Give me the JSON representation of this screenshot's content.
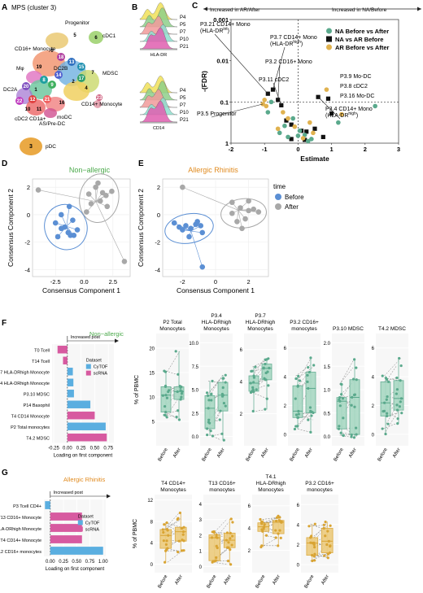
{
  "panels": {
    "A": {
      "letter": "A",
      "title": "MPS (cluster 3)",
      "cluster_labels": [
        {
          "num": "5",
          "name": "Progenitor"
        },
        {
          "num": "6",
          "name": "cDC1"
        },
        {
          "num": "0",
          "name": "CD16+ Monocyte"
        },
        {
          "num": "19",
          "name": "Mφ"
        },
        {
          "num": "2",
          "name": "DC2B"
        },
        {
          "num": "7",
          "name": "MDSC"
        },
        {
          "num": "4",
          "name": "CD14+ Monocyte"
        },
        {
          "num": "1",
          "name": "DC2A"
        },
        {
          "num": "16",
          "name": "moDC"
        },
        {
          "num": "10",
          "name": "cDC2 CD1a+"
        },
        {
          "num": "11",
          "name": "AS/Pre-DC"
        },
        {
          "num": "3",
          "name": "pDC"
        }
      ],
      "other_nums": [
        "18",
        "13",
        "15",
        "14",
        "17",
        "8",
        "9",
        "20",
        "22",
        "12",
        "21",
        "23"
      ]
    },
    "B": {
      "letter": "B",
      "samples": [
        "P4",
        "P5",
        "P7",
        "P10",
        "P21"
      ],
      "markers": [
        "HLA-DR",
        "CD14"
      ],
      "colors": [
        "#f0e15a",
        "#8fd08a",
        "#f29b9b",
        "#8fe0d0",
        "#e05fb0"
      ]
    },
    "C": {
      "letter": "C",
      "arrow_left": "Increased in AR/After",
      "arrow_right": "Increased in NA/Before",
      "xlabel": "Estimate",
      "ylabel": "-(FDR)",
      "ytick_labels": [
        "0.001",
        "0.01",
        "0.1",
        "1"
      ],
      "xtick_labels": [
        "-2",
        "-1",
        "0",
        "1",
        "2",
        "3"
      ],
      "legend": [
        {
          "label": "NA Before vs After",
          "color": "#5aa98c",
          "shape": "circle"
        },
        {
          "label": "NA vs AR Before",
          "color": "#111111",
          "shape": "square"
        },
        {
          "label": "AR Before vs After",
          "color": "#e0b24f",
          "shape": "circle"
        }
      ],
      "annotations": [
        {
          "line1": "P3.21 CD14+ Mono",
          "line2": "(HLA-DR",
          "sup": "int",
          "tail": ")"
        },
        {
          "line1": "P3.7 CD14+ Mono",
          "line2": "(HLA-DR",
          "sup": "high",
          "tail": ")"
        },
        {
          "line1": "P3.2 CD16+ Mono"
        },
        {
          "line1": "P3.11 cDC2"
        },
        {
          "line1": "P3.9 Mo-DC"
        },
        {
          "line1": "P3.8 cDC2"
        },
        {
          "line1": "P3.16 Mo-DC"
        },
        {
          "line1": "P3.5 Progenitor"
        },
        {
          "line1": "P3.4 CD14+ Mono",
          "line2": "(HLA-DR",
          "sup": "high",
          "tail": ")"
        }
      ]
    },
    "D": {
      "letter": "D",
      "title": "Non−allergic",
      "title_color": "#4aa94a",
      "xlabel": "Consensus Component 1",
      "ylabel": "Consensus Component 2",
      "xtick_labels": [
        "-2.5",
        "0.0",
        "2.5"
      ],
      "ytick_labels": [
        "2",
        "0",
        "-2",
        "-4"
      ]
    },
    "E": {
      "letter": "E",
      "title": "Allergic Rhinitis",
      "title_color": "#e08a1e",
      "xlabel": "Consensus Component 1",
      "ylabel": "Consensus Component 2",
      "xtick_labels": [
        "-2",
        "0",
        "2"
      ],
      "ytick_labels": [
        "2",
        "0",
        "-2",
        "-4"
      ],
      "legend_title": "time",
      "legend": [
        {
          "label": "Before",
          "color": "#5b8fd4"
        },
        {
          "label": "After",
          "color": "#a8a8a8"
        }
      ]
    },
    "F": {
      "letter": "F",
      "title": "Non−allergic",
      "title_color": "#4aa94a",
      "arrow_label": "Increased post",
      "xlabel": "Loading on first component",
      "legend_title": "Dataset",
      "legend": [
        {
          "label": "CyTOF",
          "color": "#5aaee0"
        },
        {
          "label": "scRNA",
          "color": "#d75aa0"
        }
      ],
      "xtick_labels": [
        "-0.25",
        "0.00",
        "0.25",
        "0.50",
        "0.75"
      ],
      "bars": [
        {
          "label": "T0 Tcell",
          "value": -0.18,
          "dataset": "scRNA"
        },
        {
          "label": "T14 Tcell",
          "value": -0.08,
          "dataset": "scRNA"
        },
        {
          "label": "P3.7 HLA-DRhigh Monocyte",
          "value": 0.1,
          "dataset": "CyTOF"
        },
        {
          "label": "P3.4 HLA-DRhigh Monocyte",
          "value": 0.11,
          "dataset": "CyTOF"
        },
        {
          "label": "P3.10 MDSC",
          "value": 0.12,
          "dataset": "CyTOF"
        },
        {
          "label": "P14 Basophil",
          "value": 0.42,
          "dataset": "CyTOF"
        },
        {
          "label": "T4 CD14 Monocyte",
          "value": 0.5,
          "dataset": "scRNA"
        },
        {
          "label": "P2 Total monocytes",
          "value": 0.7,
          "dataset": "CyTOF"
        },
        {
          "label": "T4.2 MDSC",
          "value": 0.72,
          "dataset": "scRNA"
        }
      ]
    },
    "F_box": {
      "ylabel": "% of PBMC",
      "color": "#5aa98c",
      "fill": "#a9d8c4",
      "plots": [
        {
          "title": "P2 Total Monocytes",
          "ticks": [
            "5",
            "10",
            "15",
            "20"
          ],
          "ymax": 23
        },
        {
          "title": "P3.4 HLA-DRhigh Monocytes",
          "ticks": [
            "0.0",
            "2.5",
            "5.0",
            "7.5",
            "10.0"
          ],
          "ymax": 11
        },
        {
          "title": "P3.7 HLA-DRhigh Monocytes",
          "ticks": [
            "2",
            "4",
            "6"
          ],
          "ymax": 7
        },
        {
          "title": "P3.2 CD16+ monocytes",
          "ticks": [
            "0",
            "2",
            "4",
            "6"
          ],
          "ymax": 7
        },
        {
          "title": "P3.10 MDSC",
          "ticks": [
            "0.0",
            "0.5",
            "1.0",
            "1.5",
            "2.0"
          ],
          "ymax": 2.2
        },
        {
          "title": "T4.2 MDSC",
          "ticks": [
            "0",
            "2",
            "4",
            "6"
          ],
          "ymax": 7
        }
      ],
      "xcats": [
        "Before",
        "After"
      ]
    },
    "G": {
      "letter": "G",
      "title": "Allergic Rhinitis",
      "title_color": "#e08a1e",
      "arrow_label": "Increased post",
      "xlabel": "Loading on first component",
      "legend_title": "Dataset",
      "legend": [
        {
          "label": "CyTOF",
          "color": "#5aaee0"
        },
        {
          "label": "scRNA",
          "color": "#d75aa0"
        }
      ],
      "xtick_labels": [
        "0.00",
        "0.25",
        "0.50",
        "0.75",
        "1.00"
      ],
      "bars": [
        {
          "label": "P3 Tcell CD4+",
          "value": -0.1,
          "dataset": "CyTOF"
        },
        {
          "label": "T13 CD16+ Monocyte",
          "value": 0.6,
          "dataset": "scRNA"
        },
        {
          "label": "T4.1 HLA-DRhigh Monocyte",
          "value": 0.6,
          "dataset": "scRNA"
        },
        {
          "label": "T4 CD14+ Monocyte",
          "value": 0.6,
          "dataset": "scRNA"
        },
        {
          "label": "P3.2 CD16+ monocytes",
          "value": 1.0,
          "dataset": "CyTOF"
        }
      ]
    },
    "G_box": {
      "ylabel": "% of PBMC",
      "color": "#d9a433",
      "fill": "#eccb7e",
      "plots": [
        {
          "title": "T4 CD14+ Monocytes",
          "ticks": [
            "0",
            "4",
            "8",
            "12"
          ],
          "ymax": 13
        },
        {
          "title": "T13 CD16+ monocytes",
          "ticks": [
            "0",
            "1",
            "2",
            "3",
            "4"
          ],
          "ymax": 4.6
        },
        {
          "title": "T4.1 HLA-DRhigh Monocytes",
          "ticks": [
            "2",
            "4",
            "6"
          ],
          "ymax": 7
        },
        {
          "title": "P3.2 CD16+ monocytes",
          "ticks": [
            "0",
            "2",
            "4",
            "6"
          ],
          "ymax": 7
        }
      ],
      "xcats": [
        "Before",
        "After"
      ]
    }
  }
}
